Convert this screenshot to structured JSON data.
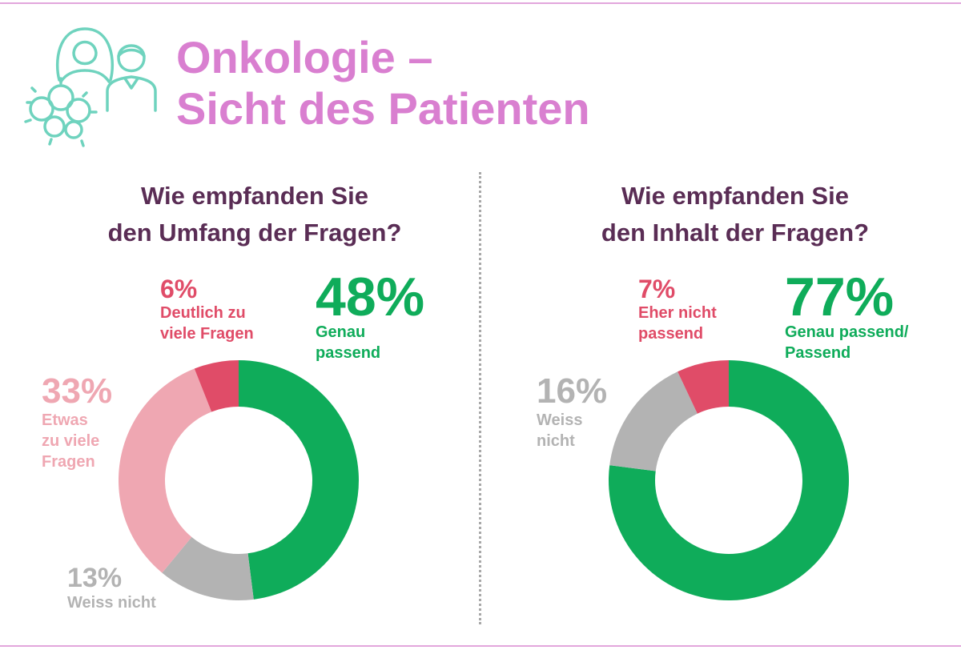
{
  "title_line1": "Onkologie –",
  "title_line2": "Sicht des Patienten",
  "chart_data": [
    {
      "type": "pie",
      "donut": true,
      "title": "Wie empfanden Sie den Umfang der Fragen?",
      "title_lines": [
        "Wie empfanden Sie",
        "den Umfang der Fragen?"
      ],
      "slices": [
        {
          "pct": "48%",
          "label": "Genau passend",
          "label_lines": [
            "Genau",
            "passend"
          ],
          "value": 48,
          "color": "#0fac5a",
          "text_color": "#0fac5a"
        },
        {
          "pct": "13%",
          "label": "Weiss nicht",
          "label_lines": [
            "Weiss nicht"
          ],
          "value": 13,
          "color": "#b3b3b3",
          "text_color": "#b3b3b3"
        },
        {
          "pct": "33%",
          "label": "Etwas zu viele Fragen",
          "label_lines": [
            "Etwas",
            "zu viele",
            "Fragen"
          ],
          "value": 33,
          "color": "#efa7b2",
          "text_color": "#efa7b2"
        },
        {
          "pct": "6%",
          "label": "Deutlich zu viele Fragen",
          "label_lines": [
            "Deutlich zu",
            "viele Fragen"
          ],
          "value": 6,
          "color": "#e04c68",
          "text_color": "#e04c68"
        }
      ]
    },
    {
      "type": "pie",
      "donut": true,
      "title": "Wie empfanden Sie den Inhalt der Fragen?",
      "title_lines": [
        "Wie empfanden Sie",
        "den Inhalt der Fragen?"
      ],
      "slices": [
        {
          "pct": "77%",
          "label": "Genau passend/ Passend",
          "label_lines": [
            "Genau passend/",
            "Passend"
          ],
          "value": 77,
          "color": "#0fac5a",
          "text_color": "#0fac5a"
        },
        {
          "pct": "16%",
          "label": "Weiss nicht",
          "label_lines": [
            "Weiss",
            "nicht"
          ],
          "value": 16,
          "color": "#b3b3b3",
          "text_color": "#b3b3b3"
        },
        {
          "pct": "7%",
          "label": "Eher nicht passend",
          "label_lines": [
            "Eher nicht",
            "passend"
          ],
          "value": 7,
          "color": "#e04c68",
          "text_color": "#e04c68"
        }
      ]
    }
  ],
  "colors": {
    "title": "#d97fd0",
    "question": "#5a2d55",
    "rule": "#e2a6dc",
    "icon": "#6fd3be"
  },
  "icon": "oncology-patient-doctor-cells-icon"
}
